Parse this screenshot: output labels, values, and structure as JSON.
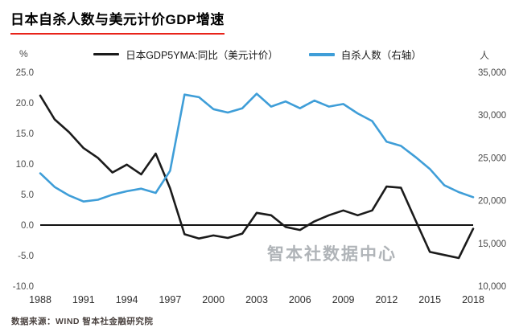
{
  "title": "日本自杀人数与美元计价GDP增速",
  "source": "数据来源：WIND 智本社金融研究院",
  "watermark": "智本社数据中心",
  "colors": {
    "title_underline": "#e8231a",
    "gdp_line": "#1b1b1b",
    "suicide_line": "#3f9ed8",
    "zero_line": "#111111",
    "tick_text": "#4a4a4a",
    "x_tick_text": "#2e2e2e"
  },
  "legend": [
    {
      "key": "gdp",
      "label": "日本GDP5YMA:同比（美元计价）",
      "color": "#1b1b1b"
    },
    {
      "key": "suicides",
      "label": "自杀人数（右轴）",
      "color": "#3f9ed8"
    }
  ],
  "chart_data": {
    "type": "line",
    "title": "日本自杀人数与美元计价GDP增速",
    "legend_position": "top",
    "grid": false,
    "zero_line": true,
    "x": [
      1988,
      1989,
      1990,
      1991,
      1992,
      1993,
      1994,
      1995,
      1996,
      1997,
      1998,
      1999,
      2000,
      2001,
      2002,
      2003,
      2004,
      2005,
      2006,
      2007,
      2008,
      2009,
      2010,
      2011,
      2012,
      2013,
      2014,
      2015,
      2016,
      2017,
      2018
    ],
    "x_ticks": [
      1988,
      1991,
      1994,
      1997,
      2000,
      2003,
      2006,
      2009,
      2012,
      2015,
      2018
    ],
    "x_tick_labels": [
      "1988",
      "1991",
      "1994",
      "1997",
      "2000",
      "2003",
      "2006",
      "2009",
      "2012",
      "2015",
      "2018"
    ],
    "left_axis": {
      "unit": "%",
      "min": -10,
      "max": 25,
      "ticks": [
        25,
        20,
        15,
        10,
        5,
        0,
        -5,
        -10
      ],
      "tick_labels": [
        "25.0",
        "20.0",
        "15.0",
        "10.0",
        "5.0",
        "0.0",
        "-5.0",
        "-10.0"
      ]
    },
    "right_axis": {
      "unit": "人",
      "min": 10000,
      "max": 35000,
      "ticks": [
        35000,
        30000,
        25000,
        20000,
        15000,
        10000
      ],
      "tick_labels": [
        "35,000",
        "30,000",
        "25,000",
        "20,000",
        "15,000",
        "10,000"
      ]
    },
    "series": [
      {
        "key": "gdp",
        "name": "日本GDP5YMA:同比（美元计价）",
        "axis": "left",
        "color": "#1b1b1b",
        "values": [
          21.2,
          17.3,
          15.2,
          12.6,
          11.0,
          8.6,
          9.9,
          8.3,
          11.7,
          6.0,
          -1.5,
          -2.2,
          -1.7,
          -2.1,
          -1.4,
          2.0,
          1.6,
          -0.3,
          -0.8,
          0.6,
          1.6,
          2.4,
          1.6,
          2.4,
          6.3,
          6.1,
          0.8,
          -4.4,
          -4.9,
          -5.4,
          -0.6
        ]
      },
      {
        "key": "suicides",
        "name": "自杀人数（右轴）",
        "axis": "right",
        "color": "#3f9ed8",
        "values": [
          23200,
          21600,
          20600,
          19900,
          20100,
          20700,
          21100,
          21400,
          20900,
          23500,
          32400,
          32100,
          30700,
          30300,
          30800,
          32500,
          31000,
          31600,
          30800,
          31700,
          31000,
          31300,
          30200,
          29300,
          26900,
          26400,
          25100,
          23700,
          21800,
          21000,
          20400
        ]
      }
    ]
  }
}
